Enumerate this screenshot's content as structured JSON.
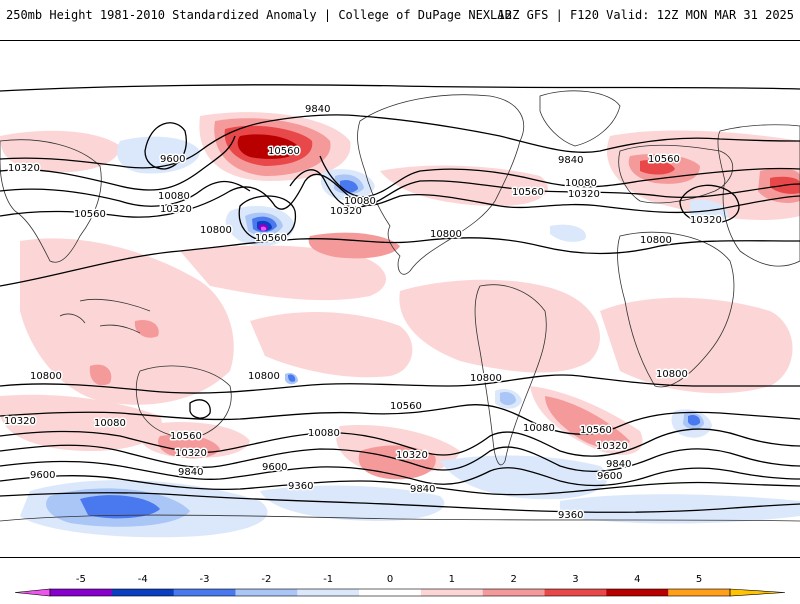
{
  "header": {
    "left_title": "250mb Height 1981-2010 Standardized Anomaly | College of DuPage NEXLAB",
    "right_title": "12Z GFS | F120 Valid: 12Z MON MAR 31 2025"
  },
  "contour_labels": {
    "l1": "9840",
    "l2": "9600",
    "l3": "10560",
    "l4": "10320",
    "l5": "10080",
    "l6": "10320",
    "l7": "10560",
    "l8": "10800",
    "l9": "10560",
    "l10": "10080",
    "l11": "10320",
    "l12": "9840",
    "l13": "10080",
    "l14": "10320",
    "l15": "10560",
    "l16": "10800",
    "l17": "10560",
    "l18": "10320",
    "l19": "10800",
    "l20": "10800",
    "l21": "10800",
    "l22": "10800",
    "l23": "10800",
    "l24": "10560",
    "l25": "10080",
    "l26": "10560",
    "l27": "10320",
    "l28": "10080",
    "l29": "10320",
    "l30": "9600",
    "l31": "9840",
    "l32": "9600",
    "l33": "9360",
    "l34": "9840",
    "l35": "10080",
    "l36": "10560",
    "l37": "10320",
    "l38": "9840",
    "l39": "9600",
    "l40": "9360",
    "l41": "10320"
  },
  "colorbar": {
    "ticks": [
      "-5",
      "-4",
      "-3",
      "-2",
      "-1",
      "0",
      "1",
      "2",
      "3",
      "4",
      "5"
    ],
    "colors": {
      "m5_6": "#ee55ee",
      "m4_5": "#8800cc",
      "m3_4": "#0b3ec0",
      "m2_3": "#4a78ef",
      "m1_2": "#aac6f6",
      "m0_1": "#dbe8fb",
      "p0_1": "#ffffff",
      "p1_2": "#fcd6d6",
      "p2_3": "#f59a9a",
      "p3_4": "#e8484a",
      "p4_5": "#b80000",
      "p5_6": "#ff9f1a",
      "p6_7": "#ffc300"
    }
  }
}
